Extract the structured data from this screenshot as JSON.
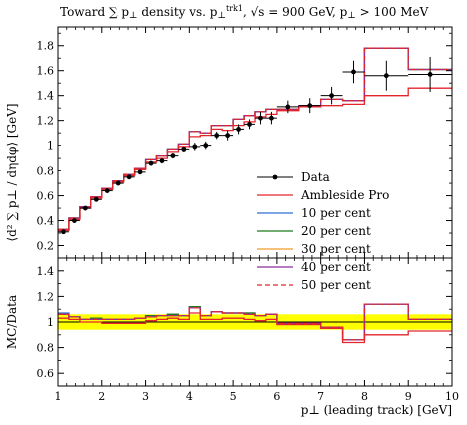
{
  "chart_data": [
    {
      "type": "line",
      "panel": "main",
      "title": "Toward ∑ p⊥ density vs. p⊥trk1, √s = 900 GeV, p⊥ > 100 MeV",
      "ylabel": "⟨d² ∑ p⊥ / dηdφ⟩ [GeV]",
      "xlim": [
        1,
        10
      ],
      "ylim": [
        0.1,
        1.95
      ],
      "xticks": [
        "1",
        "2",
        "3",
        "4",
        "5",
        "6",
        "7",
        "8",
        "9",
        "10"
      ],
      "yticks": [
        "0.2",
        "0.4",
        "0.6",
        "0.8",
        "1",
        "1.2",
        "1.4",
        "1.6",
        "1.8"
      ],
      "x_edges": [
        1.0,
        1.25,
        1.5,
        1.75,
        2.0,
        2.25,
        2.5,
        2.75,
        3.0,
        3.25,
        3.5,
        3.75,
        4.0,
        4.25,
        4.5,
        4.75,
        5.0,
        5.25,
        5.5,
        5.75,
        6.0,
        6.5,
        7.0,
        7.5,
        8.0,
        9.0,
        10.0
      ],
      "data": {
        "name": "Data",
        "x": [
          1.125,
          1.375,
          1.625,
          1.875,
          2.125,
          2.375,
          2.625,
          2.875,
          3.125,
          3.375,
          3.625,
          3.875,
          4.125,
          4.375,
          4.625,
          4.875,
          5.125,
          5.375,
          5.625,
          5.875,
          6.25,
          6.75,
          7.25,
          7.75,
          8.5,
          9.5
        ],
        "y": [
          0.31,
          0.4,
          0.5,
          0.57,
          0.64,
          0.7,
          0.75,
          0.79,
          0.86,
          0.88,
          0.92,
          0.97,
          0.99,
          1.0,
          1.08,
          1.08,
          1.13,
          1.17,
          1.22,
          1.22,
          1.31,
          1.32,
          1.4,
          1.59,
          1.56,
          1.57
        ],
        "yerr": [
          0.01,
          0.01,
          0.01,
          0.01,
          0.01,
          0.01,
          0.01,
          0.01,
          0.02,
          0.02,
          0.02,
          0.02,
          0.03,
          0.03,
          0.03,
          0.04,
          0.04,
          0.04,
          0.05,
          0.05,
          0.05,
          0.06,
          0.07,
          0.09,
          0.12,
          0.14
        ]
      },
      "series": [
        {
          "name": "Ambleside Pro",
          "color": "#e3262d",
          "dash": "solid",
          "values": [
            0.32,
            0.41,
            0.5,
            0.58,
            0.65,
            0.71,
            0.76,
            0.81,
            0.87,
            0.9,
            0.95,
            0.99,
            1.07,
            1.08,
            1.13,
            1.12,
            1.16,
            1.19,
            1.23,
            1.25,
            1.28,
            1.31,
            1.32,
            1.33,
            1.4,
            1.46
          ]
        },
        {
          "name": "10 per cent",
          "color": "#2f6fd2",
          "dash": "solid",
          "values": [
            0.33,
            0.42,
            0.51,
            0.59,
            0.66,
            0.72,
            0.77,
            0.82,
            0.89,
            0.92,
            0.97,
            1.01,
            1.11,
            1.1,
            1.16,
            1.16,
            1.21,
            1.24,
            1.27,
            1.29,
            1.29,
            1.32,
            1.37,
            1.36,
            1.78,
            1.61
          ]
        },
        {
          "name": "20 per cent",
          "color": "#1c7a1c",
          "dash": "solid",
          "values": [
            0.33,
            0.42,
            0.51,
            0.59,
            0.66,
            0.72,
            0.77,
            0.82,
            0.89,
            0.92,
            0.97,
            1.01,
            1.11,
            1.1,
            1.16,
            1.16,
            1.21,
            1.24,
            1.27,
            1.29,
            1.29,
            1.32,
            1.37,
            1.36,
            1.78,
            1.61
          ]
        },
        {
          "name": "30 per cent",
          "color": "#f29b2b",
          "dash": "solid",
          "values": [
            0.33,
            0.42,
            0.51,
            0.59,
            0.66,
            0.72,
            0.77,
            0.82,
            0.89,
            0.92,
            0.97,
            1.01,
            1.11,
            1.1,
            1.16,
            1.16,
            1.21,
            1.24,
            1.27,
            1.29,
            1.29,
            1.32,
            1.37,
            1.36,
            1.78,
            1.61
          ]
        },
        {
          "name": "40 per cent",
          "color": "#8a2d9c",
          "dash": "solid",
          "values": [
            0.33,
            0.42,
            0.51,
            0.59,
            0.66,
            0.72,
            0.77,
            0.82,
            0.89,
            0.92,
            0.97,
            1.01,
            1.11,
            1.1,
            1.16,
            1.16,
            1.21,
            1.24,
            1.27,
            1.29,
            1.29,
            1.32,
            1.37,
            1.36,
            1.78,
            1.61
          ]
        },
        {
          "name": "50 per cent",
          "color": "#e3262d",
          "dash": "dashed",
          "values": [
            0.33,
            0.42,
            0.51,
            0.59,
            0.66,
            0.72,
            0.77,
            0.82,
            0.89,
            0.92,
            0.97,
            1.01,
            1.11,
            1.1,
            1.16,
            1.16,
            1.21,
            1.24,
            1.27,
            1.29,
            1.29,
            1.32,
            1.37,
            1.36,
            1.78,
            1.61
          ]
        }
      ],
      "legend_position": "lower-right"
    },
    {
      "type": "line",
      "panel": "ratio",
      "ylabel": "MC/Data",
      "xlabel": "p⊥ (leading track) [GeV]",
      "xlim": [
        1,
        10
      ],
      "ylim": [
        0.5,
        1.5
      ],
      "xticks": [
        "1",
        "2",
        "3",
        "4",
        "5",
        "6",
        "7",
        "8",
        "9",
        "10"
      ],
      "yticks": [
        "0.6",
        "0.8",
        "1",
        "1.2",
        "1.4"
      ],
      "band": {
        "color": "#ffff00",
        "low": 0.94,
        "high": 1.06
      },
      "reference": 1.0,
      "series": [
        {
          "name": "Ambleside Pro",
          "values": [
            1.03,
            1.02,
            1.0,
            1.0,
            0.99,
            0.99,
            0.99,
            0.99,
            1.01,
            1.02,
            1.03,
            1.02,
            1.07,
            1.02,
            1.02,
            1.03,
            1.03,
            1.02,
            1.01,
            1.02,
            0.98,
            0.98,
            0.95,
            0.84,
            0.9,
            0.93
          ]
        },
        {
          "name": "10 per cent",
          "values": [
            1.07,
            1.04,
            1.02,
            1.03,
            1.02,
            1.02,
            1.02,
            1.03,
            1.05,
            1.05,
            1.06,
            1.05,
            1.12,
            1.05,
            1.08,
            1.07,
            1.07,
            1.07,
            1.05,
            1.06,
            0.99,
            0.99,
            0.96,
            0.86,
            1.14,
            1.02
          ]
        },
        {
          "name": "20 per cent",
          "values": [
            1.06,
            1.04,
            1.02,
            1.03,
            1.02,
            1.02,
            1.02,
            1.03,
            1.05,
            1.05,
            1.06,
            1.05,
            1.12,
            1.05,
            1.08,
            1.07,
            1.07,
            1.07,
            1.05,
            1.06,
            0.99,
            0.99,
            0.96,
            0.86,
            1.14,
            1.02
          ]
        },
        {
          "name": "30 per cent",
          "values": [
            1.06,
            1.04,
            1.02,
            1.02,
            1.02,
            1.02,
            1.02,
            1.03,
            1.04,
            1.05,
            1.05,
            1.05,
            1.11,
            1.05,
            1.08,
            1.07,
            1.07,
            1.06,
            1.05,
            1.06,
            0.99,
            0.99,
            0.96,
            0.86,
            1.14,
            1.02
          ]
        },
        {
          "name": "40 per cent",
          "values": [
            1.06,
            1.04,
            1.02,
            1.02,
            1.02,
            1.02,
            1.02,
            1.03,
            1.04,
            1.05,
            1.05,
            1.05,
            1.11,
            1.05,
            1.08,
            1.07,
            1.07,
            1.06,
            1.05,
            1.06,
            0.99,
            0.99,
            0.96,
            0.86,
            1.14,
            1.02
          ]
        },
        {
          "name": "50 per cent",
          "values": [
            1.06,
            1.04,
            1.02,
            1.02,
            1.02,
            1.02,
            1.02,
            1.03,
            1.04,
            1.05,
            1.05,
            1.05,
            1.11,
            1.05,
            1.08,
            1.07,
            1.07,
            1.06,
            1.05,
            1.06,
            0.99,
            0.99,
            0.96,
            0.86,
            1.14,
            1.02
          ]
        }
      ]
    }
  ],
  "legend": {
    "entries": [
      "Data",
      "Ambleside Pro",
      "10 per cent",
      "20 per cent",
      "30 per cent",
      "40 per cent",
      "50 per cent"
    ]
  }
}
